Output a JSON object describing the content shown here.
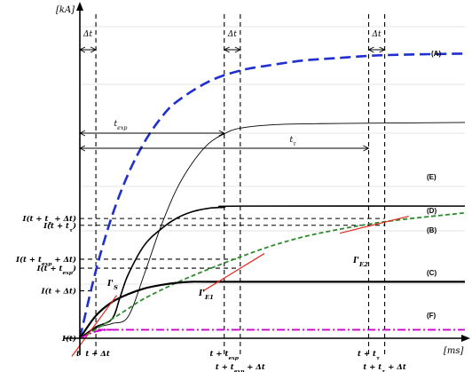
{
  "chart_data": {
    "type": "line",
    "axes": {
      "y_unit": "[kA]",
      "x_unit": "[ms]"
    },
    "x_ticks": [
      {
        "key": "t",
        "label": "t",
        "x": 0
      },
      {
        "key": "t_dt",
        "label": "t + Δt",
        "x": 1
      },
      {
        "key": "t_texp",
        "label": "t + t_exp",
        "x": 9
      },
      {
        "key": "t_texp_dt",
        "label": "t + t_exp + Δt",
        "x": 10
      },
      {
        "key": "t_ttau",
        "label": "t + t_τ",
        "x": 18
      },
      {
        "key": "t_ttau_dt",
        "label": "t + t_τ + Δt",
        "x": 19
      }
    ],
    "y_ticks": [
      {
        "key": "I_t",
        "label": "I(t)",
        "y": 0
      },
      {
        "key": "I_t_dt",
        "label": "I(t + Δt)",
        "y": 4.2
      },
      {
        "key": "I_t_texp",
        "label": "I(t + t_exp)",
        "y": 6.2
      },
      {
        "key": "I_t_texp_dt",
        "label": "I(t + t_exp + Δt)",
        "y": 7.0
      },
      {
        "key": "I_t_ttau",
        "label": "I(t + t_τ)",
        "y": 10.0
      },
      {
        "key": "I_t_ttau_dt",
        "label": "I(t + t_τ + Δt)",
        "y": 10.6
      }
    ],
    "intervals": [
      {
        "key": "dt1",
        "label": "Δt",
        "from": 0,
        "to": 1
      },
      {
        "key": "dt2",
        "label": "Δt",
        "from": 9,
        "to": 10
      },
      {
        "key": "dt3",
        "label": "Δt",
        "from": 18,
        "to": 19
      },
      {
        "key": "texp",
        "label": "t_exp",
        "from": 0,
        "to": 9
      },
      {
        "key": "ttau",
        "label": "t_τ",
        "from": 0,
        "to": 18
      }
    ],
    "series": [
      {
        "key": "A",
        "name": "(A)",
        "color": "#1f2fd0",
        "dash": "long-dash",
        "points": [
          [
            0,
            0
          ],
          [
            1,
            6
          ],
          [
            2,
            10.8
          ],
          [
            3,
            14.5
          ],
          [
            4,
            17.3
          ],
          [
            5,
            19.4
          ],
          [
            6,
            20.9
          ],
          [
            8,
            22.7
          ],
          [
            10,
            23.7
          ],
          [
            12,
            24.2
          ],
          [
            14,
            24.6
          ],
          [
            16,
            24.8
          ],
          [
            18,
            25.0
          ],
          [
            20,
            25.1
          ],
          [
            24,
            25.2
          ]
        ]
      },
      {
        "key": "E",
        "name": "(E)",
        "color": "#000000",
        "dash": "solid-thin",
        "points": [
          [
            0,
            0
          ],
          [
            1,
            0.9
          ],
          [
            2,
            1.3
          ],
          [
            3,
            1.9
          ],
          [
            4,
            5.6
          ],
          [
            5,
            9.7
          ],
          [
            6,
            13.1
          ],
          [
            7,
            15.5
          ],
          [
            8,
            17.2
          ],
          [
            9,
            18.1
          ],
          [
            10,
            18.6
          ],
          [
            12,
            18.9
          ],
          [
            15,
            19.0
          ],
          [
            24,
            19.1
          ]
        ]
      },
      {
        "key": "D",
        "name": "(D)",
        "color": "#000000",
        "dash": "solid",
        "points": [
          [
            0,
            0
          ],
          [
            1,
            1.0
          ],
          [
            2,
            1.7
          ],
          [
            2.5,
            3.6
          ],
          [
            3,
            5.6
          ],
          [
            4,
            8.2
          ],
          [
            5,
            9.6
          ],
          [
            6,
            10.6
          ],
          [
            7,
            11.2
          ],
          [
            8,
            11.5
          ],
          [
            9,
            11.6
          ],
          [
            10,
            11.7
          ],
          [
            24,
            11.7
          ]
        ]
      },
      {
        "key": "B",
        "name": "(B)",
        "color": "#2e8b2e",
        "dash": "dashed",
        "points": [
          [
            0,
            0
          ],
          [
            1,
            0.8
          ],
          [
            2,
            1.7
          ],
          [
            3,
            2.6
          ],
          [
            4,
            3.5
          ],
          [
            6,
            4.9
          ],
          [
            8,
            6.1
          ],
          [
            10,
            7.2
          ],
          [
            12,
            8.2
          ],
          [
            14,
            9.0
          ],
          [
            16,
            9.6
          ],
          [
            18,
            10.1
          ],
          [
            20,
            10.5
          ],
          [
            24,
            11.1
          ]
        ]
      },
      {
        "key": "C",
        "name": "(C)",
        "color": "#000000",
        "dash": "bold",
        "points": [
          [
            0,
            0
          ],
          [
            1,
            2.0
          ],
          [
            2,
            3.2
          ],
          [
            3,
            3.9
          ],
          [
            4,
            4.4
          ],
          [
            5,
            4.7
          ],
          [
            6,
            4.9
          ],
          [
            7,
            5.0
          ],
          [
            9,
            5.0
          ],
          [
            24,
            5.0
          ]
        ]
      },
      {
        "key": "F",
        "name": "(F)",
        "color": "#cc00cc",
        "dash": "dash-dot",
        "points": [
          [
            0,
            0
          ],
          [
            1,
            0.6
          ],
          [
            2,
            0.75
          ],
          [
            3,
            0.75
          ],
          [
            24,
            0.75
          ]
        ]
      }
    ],
    "tangents": [
      {
        "key": "IS",
        "label": "I'S",
        "color": "#e8261f",
        "from": [
          -0.5,
          -1.6
        ],
        "to": [
          2.3,
          3.8
        ]
      },
      {
        "key": "IE1",
        "label": "I'E1",
        "color": "#e8261f",
        "from": [
          7.7,
          4.2
        ],
        "to": [
          11.5,
          7.5
        ]
      },
      {
        "key": "IE2",
        "label": "I'E2",
        "color": "#e8261f",
        "from": [
          16.2,
          9.3
        ],
        "to": [
          20.5,
          10.8
        ]
      }
    ],
    "xlim": [
      0,
      24
    ],
    "ylim": [
      -1.8,
      29
    ]
  }
}
